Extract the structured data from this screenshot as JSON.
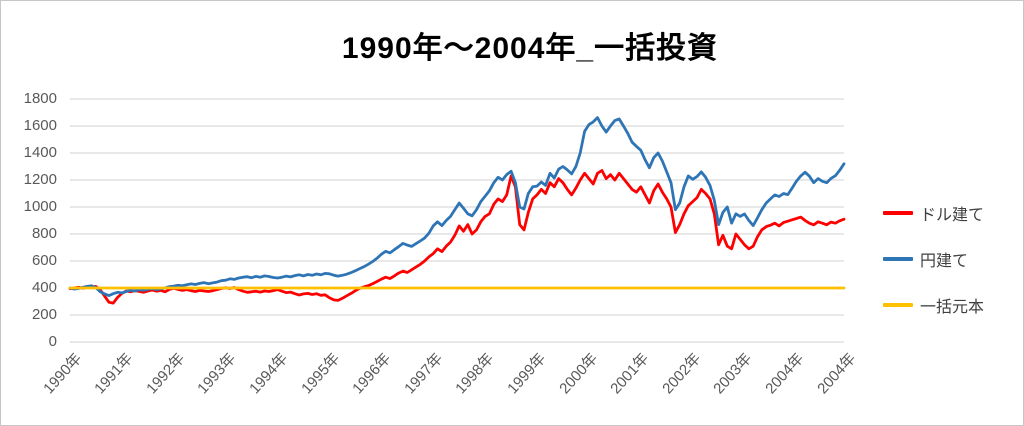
{
  "title": "1990年～2004年_一括投資",
  "colors": {
    "dollar_line": "#FF0000",
    "yen_line": "#2E75B6",
    "principal_line": "#FFC000",
    "gridline": "#D9D9D9",
    "axis_text": "#595959",
    "legend_text": "#404040"
  },
  "legend": {
    "items": [
      {
        "label": "ドル建て",
        "color": "#FF0000"
      },
      {
        "label": "円建て",
        "color": "#2E75B6"
      },
      {
        "label": "一括元本",
        "color": "#FFC000"
      }
    ]
  },
  "chart_data": {
    "type": "line",
    "title": "1990年～2004年_一括投資",
    "xlabel": "",
    "ylabel": "",
    "ylim": [
      0,
      1800
    ],
    "y_ticks": [
      0,
      200,
      400,
      600,
      800,
      1000,
      1200,
      1400,
      1600,
      1800
    ],
    "grid": "horizontal",
    "legend_position": "right",
    "x_tick_labels": [
      "1990年",
      "1991年",
      "1992年",
      "1993年",
      "1994年",
      "1995年",
      "1996年",
      "1997年",
      "1998年",
      "1999年",
      "2000年",
      "2001年",
      "2002年",
      "2003年",
      "2004年",
      "2004年"
    ],
    "x_start": "1990/01",
    "x_end": "2004/12",
    "points_per_year": 12,
    "series": [
      {
        "name": "ドル建て",
        "color": "#FF0000",
        "values": [
          395,
          400,
          405,
          398,
          410,
          405,
          412,
          385,
          340,
          295,
          288,
          330,
          360,
          378,
          372,
          380,
          375,
          368,
          378,
          385,
          376,
          382,
          372,
          390,
          398,
          390,
          382,
          388,
          380,
          374,
          382,
          378,
          374,
          380,
          388,
          396,
          402,
          396,
          404,
          388,
          376,
          368,
          372,
          376,
          370,
          378,
          374,
          380,
          388,
          376,
          366,
          370,
          358,
          348,
          356,
          360,
          352,
          358,
          346,
          350,
          328,
          312,
          308,
          324,
          342,
          360,
          380,
          398,
          408,
          418,
          432,
          448,
          465,
          480,
          470,
          490,
          510,
          525,
          515,
          535,
          555,
          575,
          600,
          630,
          655,
          690,
          670,
          710,
          740,
          790,
          860,
          820,
          870,
          800,
          830,
          890,
          930,
          950,
          1020,
          1060,
          1040,
          1090,
          1230,
          1150,
          870,
          830,
          960,
          1060,
          1090,
          1130,
          1100,
          1180,
          1150,
          1210,
          1180,
          1130,
          1090,
          1140,
          1200,
          1250,
          1210,
          1170,
          1250,
          1270,
          1210,
          1240,
          1200,
          1250,
          1210,
          1170,
          1130,
          1110,
          1150,
          1090,
          1030,
          1120,
          1170,
          1110,
          1060,
          1000,
          810,
          870,
          950,
          1010,
          1040,
          1070,
          1130,
          1100,
          1060,
          950,
          720,
          790,
          710,
          690,
          800,
          760,
          720,
          690,
          710,
          780,
          830,
          855,
          865,
          880,
          860,
          885,
          895,
          905,
          915,
          925,
          900,
          880,
          868,
          890,
          880,
          868,
          888,
          880,
          898,
          910
        ]
      },
      {
        "name": "円建て",
        "color": "#2E75B6",
        "values": [
          400,
          392,
          396,
          406,
          412,
          416,
          402,
          372,
          356,
          344,
          358,
          368,
          364,
          374,
          384,
          378,
          388,
          384,
          390,
          396,
          388,
          394,
          400,
          410,
          414,
          420,
          416,
          424,
          430,
          426,
          434,
          440,
          432,
          438,
          444,
          454,
          458,
          468,
          464,
          474,
          480,
          484,
          476,
          486,
          480,
          490,
          485,
          478,
          474,
          480,
          488,
          482,
          492,
          498,
          490,
          500,
          494,
          504,
          498,
          508,
          505,
          495,
          488,
          494,
          502,
          514,
          528,
          544,
          558,
          576,
          596,
          620,
          650,
          672,
          660,
          684,
          706,
          730,
          718,
          708,
          728,
          748,
          770,
          806,
          860,
          890,
          862,
          900,
          930,
          980,
          1030,
          990,
          950,
          935,
          980,
          1040,
          1080,
          1120,
          1180,
          1220,
          1200,
          1240,
          1265,
          1180,
          1000,
          985,
          1100,
          1150,
          1155,
          1185,
          1160,
          1250,
          1215,
          1280,
          1300,
          1275,
          1245,
          1300,
          1400,
          1560,
          1610,
          1630,
          1662,
          1600,
          1555,
          1600,
          1640,
          1652,
          1600,
          1545,
          1480,
          1450,
          1420,
          1350,
          1290,
          1365,
          1400,
          1340,
          1260,
          1180,
          980,
          1030,
          1150,
          1230,
          1205,
          1225,
          1260,
          1220,
          1160,
          1050,
          870,
          960,
          1000,
          880,
          950,
          930,
          948,
          900,
          862,
          920,
          980,
          1030,
          1060,
          1090,
          1078,
          1100,
          1092,
          1140,
          1190,
          1230,
          1258,
          1228,
          1180,
          1210,
          1190,
          1180,
          1212,
          1232,
          1272,
          1320
        ]
      },
      {
        "name": "一括元本",
        "color": "#FFC000",
        "values": [
          400,
          400
        ]
      }
    ]
  }
}
